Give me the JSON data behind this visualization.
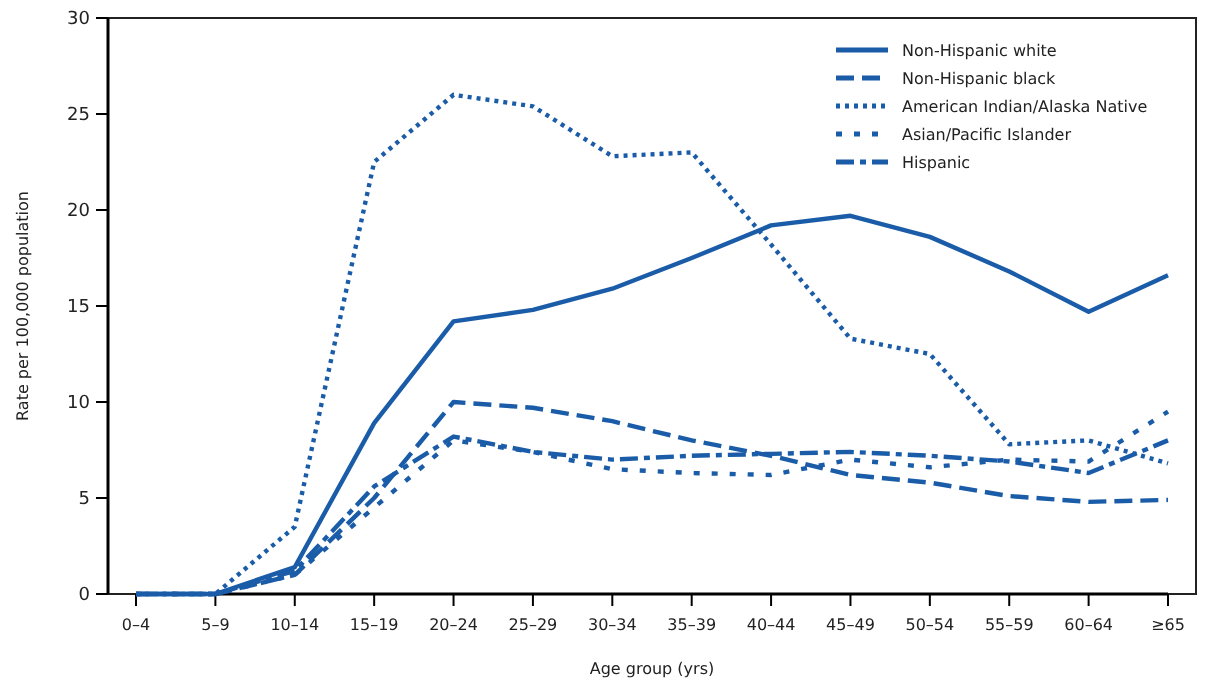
{
  "chart_data": {
    "type": "line",
    "xlabel": "Age group (yrs)",
    "ylabel": "Rate per 100,000 population",
    "categories": [
      "0–4",
      "5–9",
      "10–14",
      "15–19",
      "20–24",
      "25–29",
      "30–34",
      "35–39",
      "40–44",
      "45–49",
      "50–54",
      "55–59",
      "60–64",
      "≥65"
    ],
    "ylim": [
      0,
      30
    ],
    "yticks": [
      0,
      5,
      10,
      15,
      20,
      25,
      30
    ],
    "grid": false,
    "legend": "top right",
    "marker": "none",
    "series": [
      {
        "name": "Non-Hispanic white",
        "color": "#1a5ca8",
        "line_style": "solid",
        "values": [
          0,
          0,
          1.4,
          8.9,
          14.2,
          14.8,
          15.9,
          17.5,
          19.2,
          19.7,
          18.6,
          16.8,
          14.7,
          16.6
        ]
      },
      {
        "name": "Non-Hispanic black",
        "color": "#1a5ca8",
        "line_style": "dashed",
        "values": [
          0,
          0,
          1.0,
          5.0,
          10.0,
          9.7,
          9.0,
          8.0,
          7.2,
          6.2,
          5.8,
          5.1,
          4.8,
          4.9
        ]
      },
      {
        "name": "American Indian/Alaska Native",
        "color": "#1a5ca8",
        "line_style": "dotted",
        "values": [
          0,
          0,
          3.5,
          22.5,
          26.0,
          25.4,
          22.8,
          23.0,
          18.2,
          13.3,
          12.5,
          7.8,
          8.0,
          6.8
        ]
      },
      {
        "name": "Asian/Pacific Islander",
        "color": "#1a5ca8",
        "line_style": "loosely-dotted",
        "values": [
          0,
          0,
          1.0,
          4.5,
          8.0,
          7.4,
          6.5,
          6.3,
          6.2,
          7.0,
          6.6,
          7.0,
          6.9,
          9.5
        ]
      },
      {
        "name": "Hispanic",
        "color": "#1a5ca8",
        "line_style": "dashdot",
        "values": [
          0,
          0,
          1.2,
          5.6,
          8.2,
          7.4,
          7.0,
          7.2,
          7.3,
          7.4,
          7.2,
          6.9,
          6.3,
          8.0
        ]
      }
    ]
  }
}
